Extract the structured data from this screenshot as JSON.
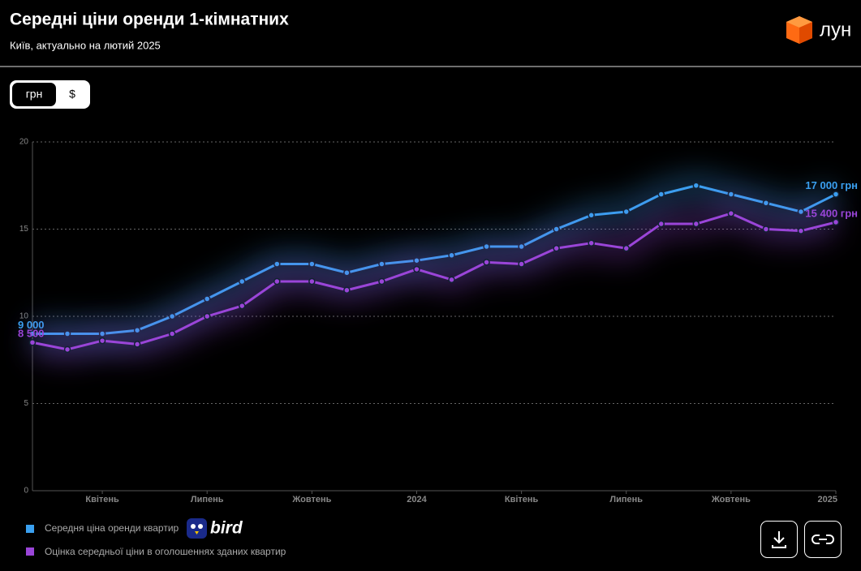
{
  "chart_data": {
    "type": "line",
    "title": "Середні ціни оренди 1-кімнатних",
    "subtitle": "Київ, актуально на лютий 2025",
    "categories": [
      null,
      null,
      "Квітень",
      null,
      null,
      "Липень",
      null,
      null,
      "Жовтень",
      null,
      null,
      "2024",
      null,
      null,
      "Квітень",
      null,
      null,
      "Липень",
      null,
      null,
      "Жовтень",
      null,
      null,
      "2025"
    ],
    "series": [
      {
        "name": "Середня ціна оренди квартир",
        "color": "#3aa0f0",
        "values": [
          9,
          9,
          9,
          9.2,
          10,
          11,
          12,
          13,
          13,
          12.5,
          13,
          13.2,
          13.5,
          14,
          14,
          15,
          15.8,
          16,
          17,
          17.5,
          17,
          16.5,
          16,
          17
        ],
        "value_labels": [
          "9 000",
          null,
          null,
          null,
          null,
          null,
          null,
          null,
          null,
          null,
          null,
          null,
          null,
          null,
          null,
          null,
          null,
          null,
          null,
          null,
          null,
          null,
          null,
          "17 000 грн"
        ]
      },
      {
        "name": "Оцінка середньої ціни в оголошеннях зданих квартир",
        "color": "#9a45d8",
        "values": [
          8.5,
          8.1,
          8.6,
          8.4,
          9,
          10,
          10.6,
          12,
          12,
          11.5,
          12,
          12.7,
          12.1,
          13.1,
          13,
          13.9,
          14.2,
          13.9,
          15.3,
          15.3,
          15.9,
          15,
          14.9,
          15.4
        ],
        "value_labels": [
          "8 500",
          null,
          null,
          null,
          null,
          null,
          null,
          null,
          null,
          null,
          null,
          null,
          null,
          null,
          null,
          null,
          null,
          null,
          null,
          null,
          null,
          null,
          null,
          "15 400 грн"
        ]
      }
    ],
    "ylim": [
      0,
      20
    ],
    "yticks": [
      0,
      5,
      10,
      15,
      20
    ],
    "grid": true
  },
  "ui": {
    "brand": "лун",
    "currency_options": [
      "грн",
      "$"
    ],
    "partner": "bird"
  }
}
